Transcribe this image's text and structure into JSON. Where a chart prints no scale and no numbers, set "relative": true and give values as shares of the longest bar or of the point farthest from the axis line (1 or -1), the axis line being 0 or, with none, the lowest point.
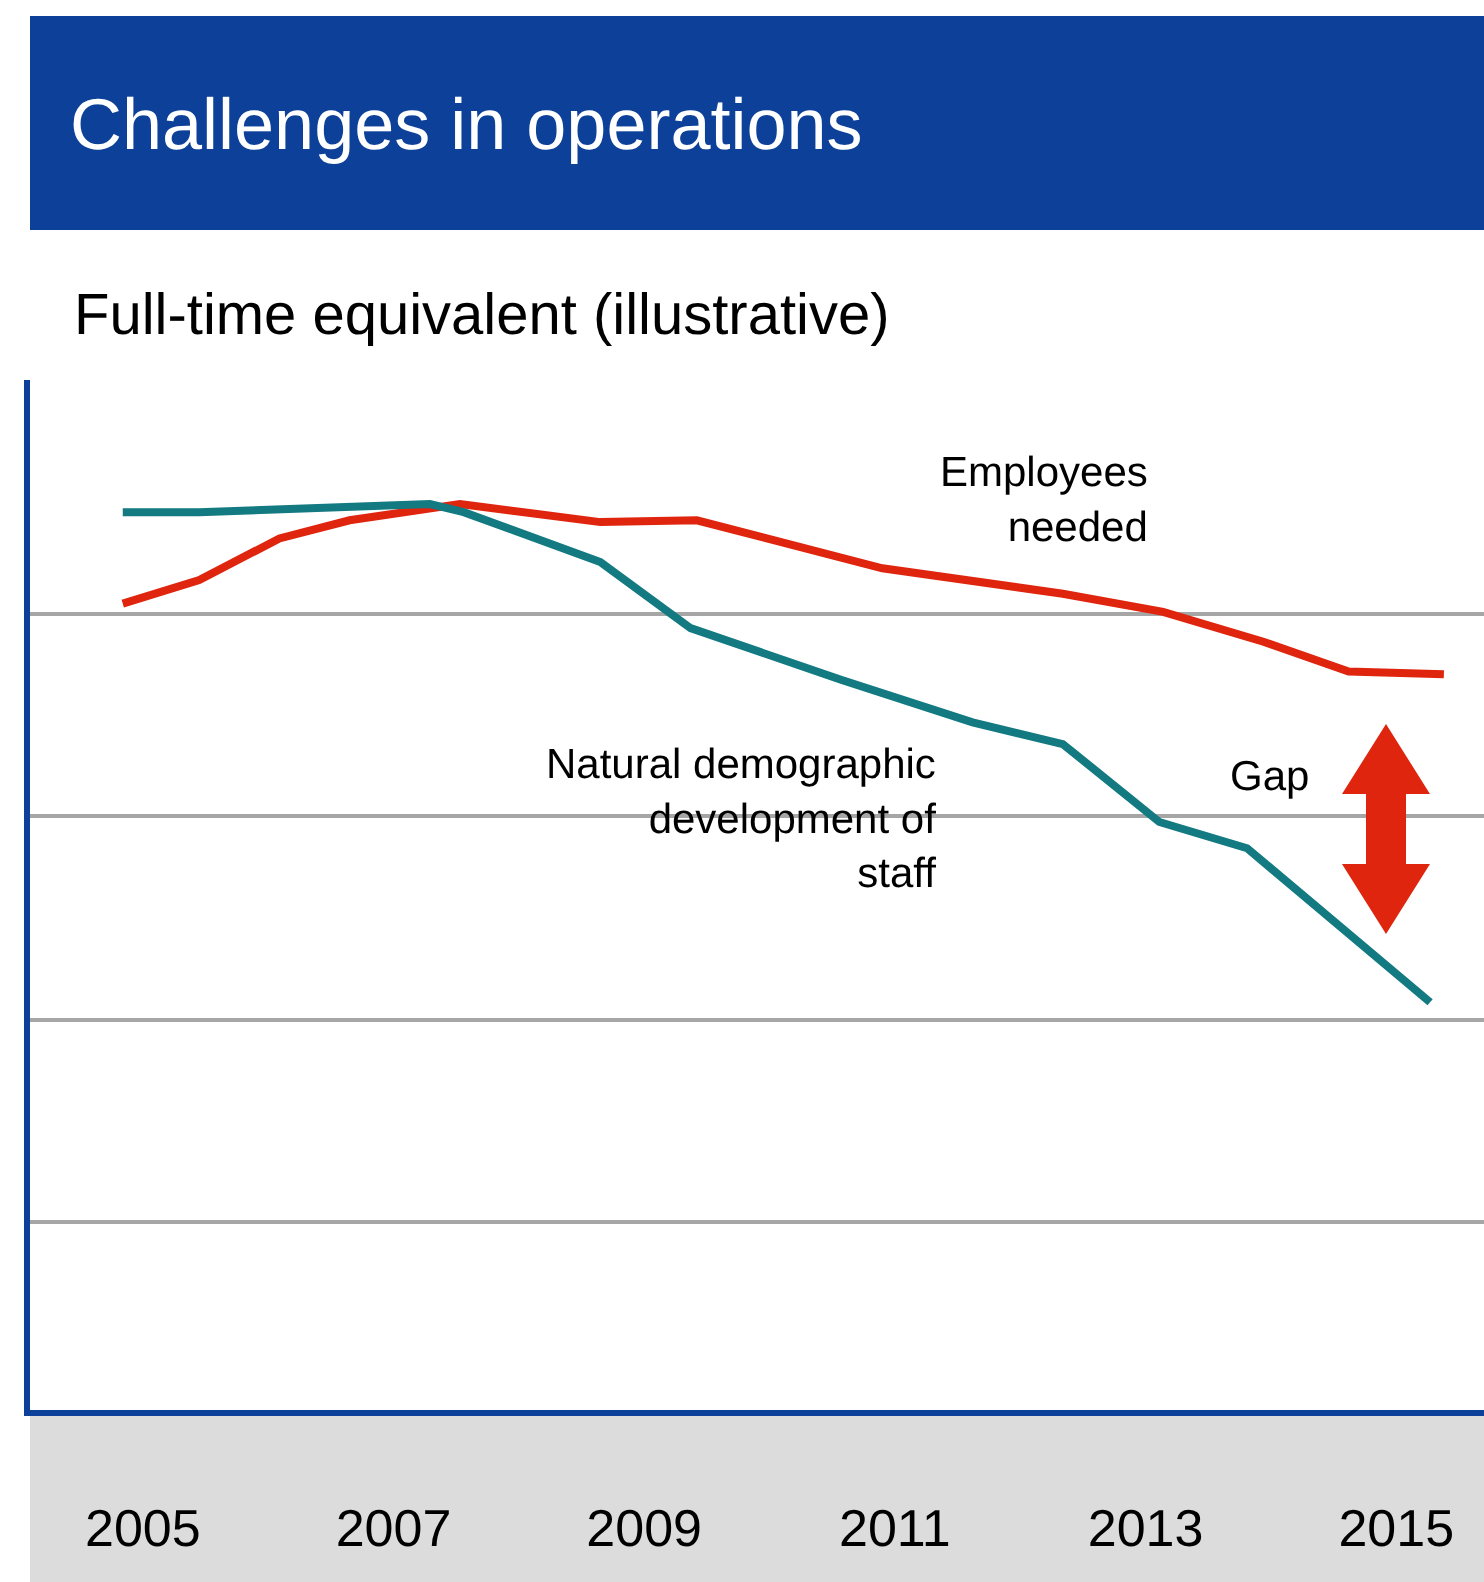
{
  "chart_data": {
    "type": "line",
    "title": "Challenges in operations",
    "subtitle": "Full-time equivalent (illustrative)",
    "relative": true,
    "xlim": [
      2004.1,
      2015.7
    ],
    "xticks": [
      2005,
      2007,
      2009,
      2011,
      2013,
      2015
    ],
    "grid": "y",
    "legend": false,
    "marker": "none",
    "line_style": "solid",
    "annotations": [
      "Gap"
    ],
    "series": [
      {
        "name": "Employees\nneeded",
        "color": "#e0250f",
        "x": [
          2004.84,
          2005.45,
          2006.09,
          2006.65,
          2007.53,
          2008.65,
          2009.42,
          2010.9,
          2012.34,
          2013.14,
          2013.94,
          2014.62,
          2015.38
        ],
        "values": [
          0.89,
          0.916,
          0.962,
          0.982,
          1.0,
          0.98,
          0.982,
          0.929,
          0.901,
          0.881,
          0.848,
          0.815,
          0.812
        ]
      },
      {
        "name": "Natural demographic\ndevelopment of\nstaff",
        "color": "#127a80",
        "x": [
          2004.84,
          2005.45,
          2007.29,
          2007.56,
          2008.65,
          2009.37,
          2010.57,
          2011.62,
          2012.34,
          2013.11,
          2013.81,
          2015.27
        ],
        "values": [
          0.991,
          0.991,
          1.0,
          0.991,
          0.936,
          0.863,
          0.806,
          0.759,
          0.735,
          0.649,
          0.62,
          0.45
        ]
      }
    ]
  }
}
